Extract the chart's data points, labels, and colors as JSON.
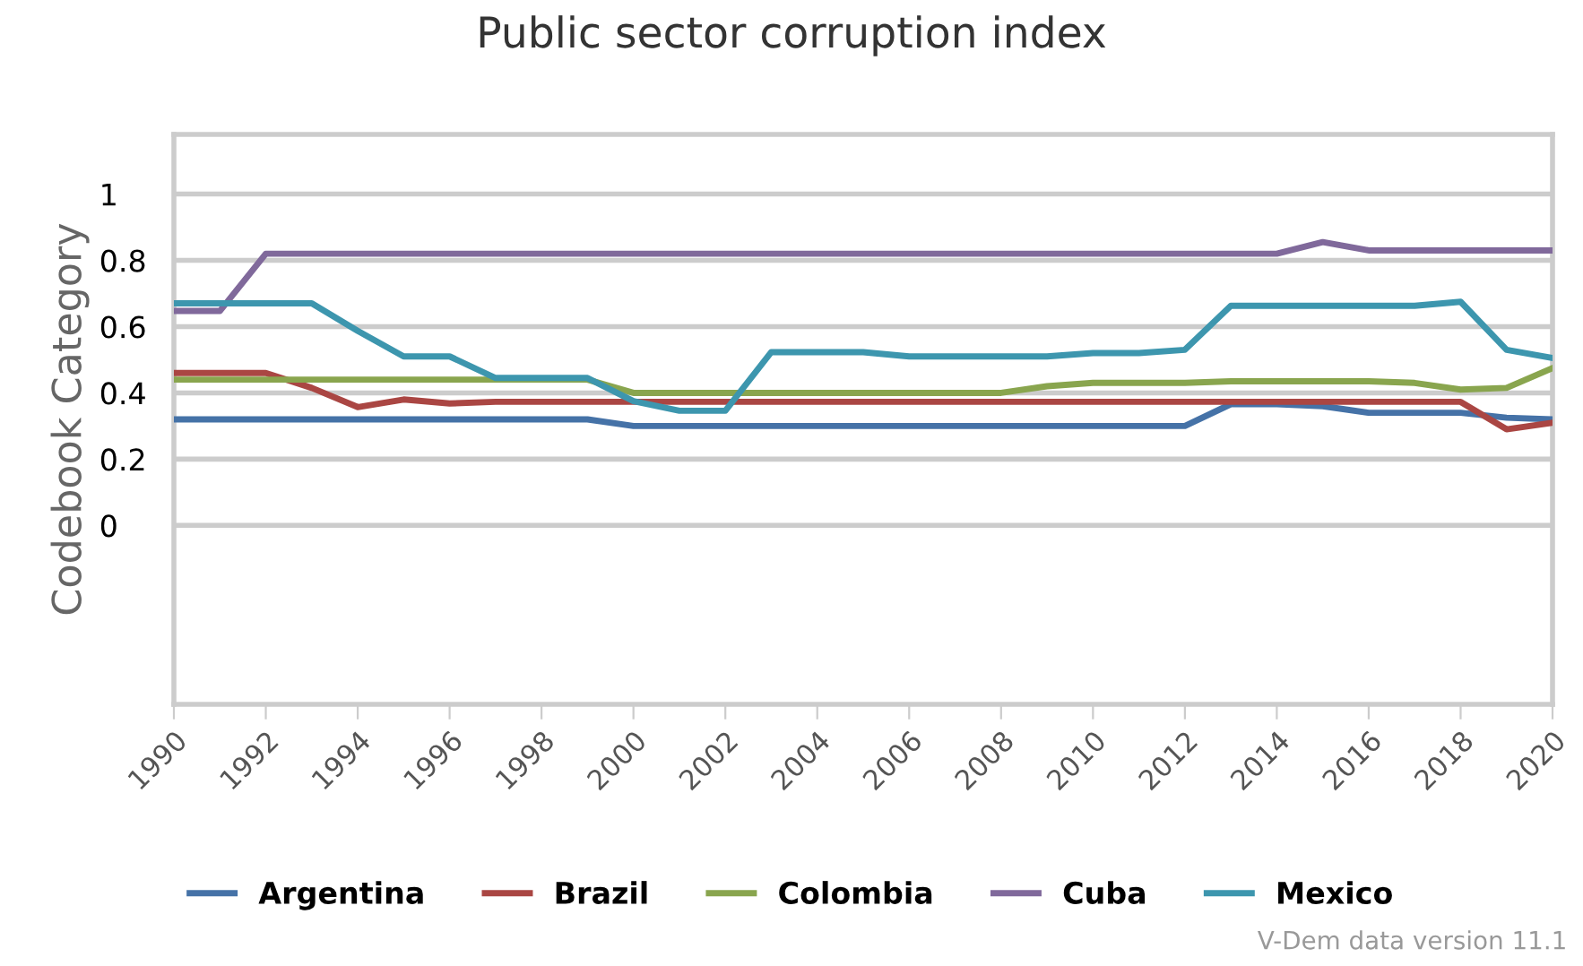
{
  "chart_data": {
    "type": "line",
    "title": "Public sector corruption index",
    "ylabel": "Codebook Category",
    "x": [
      1990,
      1991,
      1992,
      1993,
      1994,
      1995,
      1996,
      1997,
      1998,
      1999,
      2000,
      2001,
      2002,
      2003,
      2004,
      2005,
      2006,
      2007,
      2008,
      2009,
      2010,
      2011,
      2012,
      2013,
      2014,
      2015,
      2016,
      2017,
      2018,
      2019,
      2020
    ],
    "series": [
      {
        "name": "Argentina",
        "color": "#4572a7",
        "values": [
          0.32,
          0.32,
          0.32,
          0.32,
          0.32,
          0.32,
          0.32,
          0.32,
          0.32,
          0.32,
          0.3,
          0.3,
          0.3,
          0.3,
          0.3,
          0.3,
          0.3,
          0.3,
          0.3,
          0.3,
          0.3,
          0.3,
          0.3,
          0.366,
          0.366,
          0.36,
          0.34,
          0.34,
          0.34,
          0.325,
          0.32
        ]
      },
      {
        "name": "Brazil",
        "color": "#aa4643",
        "values": [
          0.46,
          0.46,
          0.46,
          0.415,
          0.357,
          0.38,
          0.368,
          0.373,
          0.373,
          0.373,
          0.373,
          0.373,
          0.373,
          0.373,
          0.373,
          0.373,
          0.373,
          0.373,
          0.373,
          0.373,
          0.373,
          0.373,
          0.373,
          0.373,
          0.373,
          0.373,
          0.373,
          0.373,
          0.373,
          0.29,
          0.31
        ]
      },
      {
        "name": "Colombia",
        "color": "#89a54e",
        "values": [
          0.44,
          0.44,
          0.44,
          0.44,
          0.44,
          0.44,
          0.44,
          0.44,
          0.44,
          0.44,
          0.4,
          0.4,
          0.4,
          0.4,
          0.4,
          0.4,
          0.4,
          0.4,
          0.4,
          0.42,
          0.43,
          0.43,
          0.43,
          0.435,
          0.435,
          0.435,
          0.435,
          0.43,
          0.41,
          0.415,
          0.475
        ]
      },
      {
        "name": "Cuba",
        "color": "#80699b",
        "values": [
          0.647,
          0.647,
          0.82,
          0.82,
          0.82,
          0.82,
          0.82,
          0.82,
          0.82,
          0.82,
          0.82,
          0.82,
          0.82,
          0.82,
          0.82,
          0.82,
          0.82,
          0.82,
          0.82,
          0.82,
          0.82,
          0.82,
          0.82,
          0.82,
          0.82,
          0.855,
          0.83,
          0.83,
          0.83,
          0.83,
          0.83
        ]
      },
      {
        "name": "Mexico",
        "color": "#3d96ae",
        "values": [
          0.67,
          0.67,
          0.67,
          0.67,
          0.587,
          0.51,
          0.51,
          0.445,
          0.445,
          0.445,
          0.375,
          0.346,
          0.346,
          0.523,
          0.523,
          0.523,
          0.51,
          0.51,
          0.51,
          0.51,
          0.52,
          0.52,
          0.53,
          0.663,
          0.663,
          0.663,
          0.663,
          0.663,
          0.675,
          0.53,
          0.505
        ]
      }
    ],
    "xlim": [
      1990,
      2020
    ],
    "xticks": [
      1990,
      1992,
      1994,
      1996,
      1998,
      2000,
      2002,
      2004,
      2006,
      2008,
      2010,
      2012,
      2014,
      2016,
      2018,
      2020
    ],
    "ylim": [
      -0.54,
      1.18
    ],
    "yticks": [
      0,
      0.2,
      0.4,
      0.6,
      0.8,
      1
    ],
    "grid": "y",
    "legend": "bottom",
    "marker": "none",
    "line_style": "solid",
    "annotations": [
      "V-Dem data version 11.1"
    ]
  }
}
